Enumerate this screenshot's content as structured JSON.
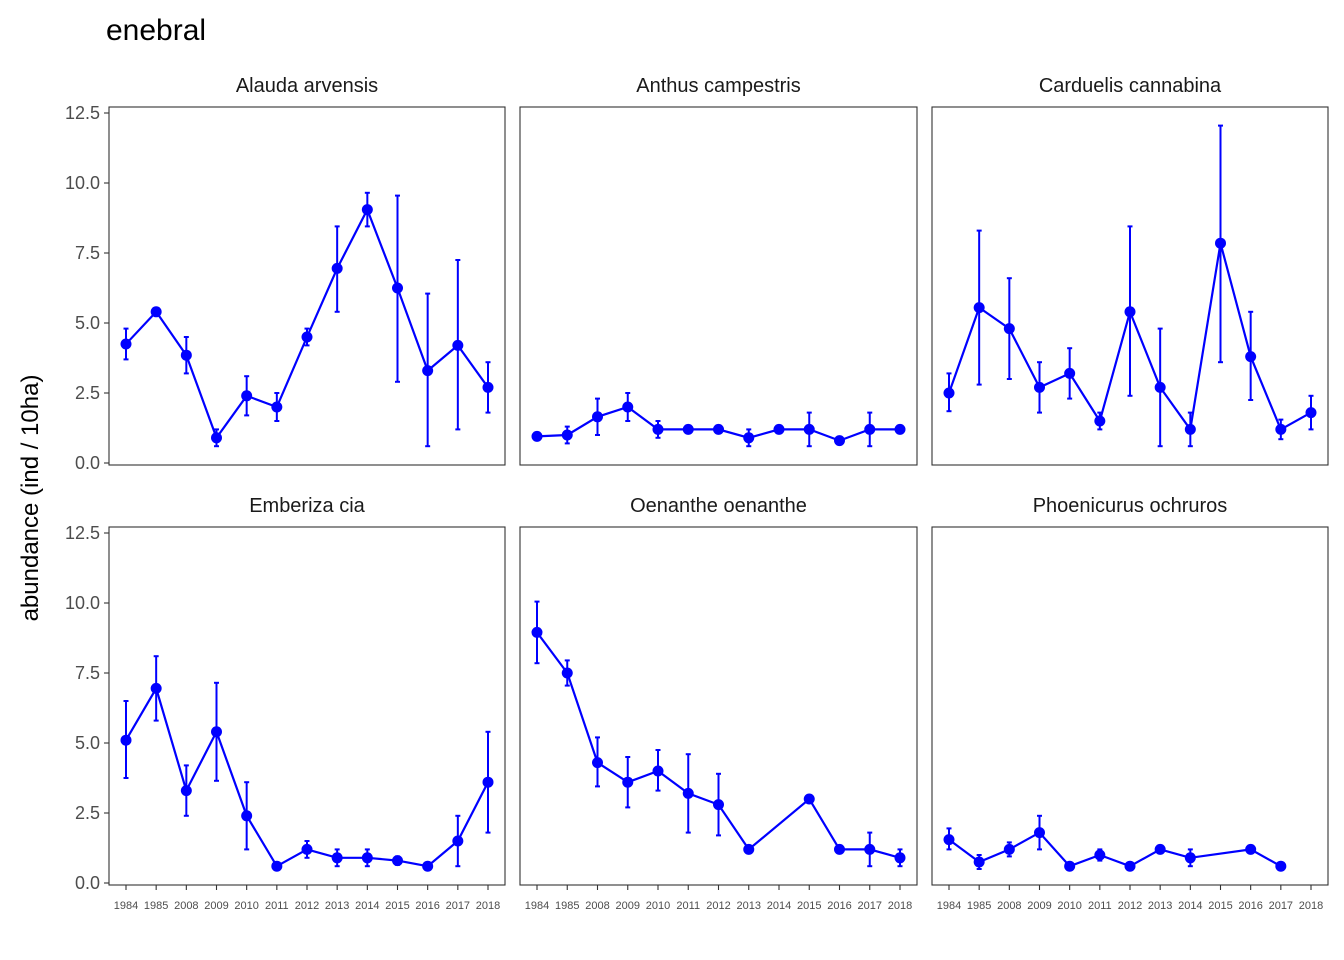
{
  "chart_data": {
    "type": "line",
    "title": "enebral",
    "ylabel": "abundance (ind / 10ha)",
    "xlabel": "",
    "ylim": [
      0,
      12.5
    ],
    "y_ticks": [
      "0.0",
      "2.5",
      "5.0",
      "7.5",
      "10.0",
      "12.5"
    ],
    "x_categories": [
      "1984",
      "1985",
      "2008",
      "2009",
      "2010",
      "2011",
      "2012",
      "2013",
      "2014",
      "2015",
      "2016",
      "2017",
      "2018"
    ],
    "color": "#0000ff",
    "grid": false,
    "panels": [
      {
        "name": "Alauda arvensis",
        "points": [
          {
            "x": "1984",
            "y": 4.25,
            "ymin": 3.7,
            "ymax": 4.8
          },
          {
            "x": "1985",
            "y": 5.4,
            "ymin": 5.3,
            "ymax": 5.5
          },
          {
            "x": "2008",
            "y": 3.85,
            "ymin": 3.2,
            "ymax": 4.5
          },
          {
            "x": "2009",
            "y": 0.9,
            "ymin": 0.6,
            "ymax": 1.2
          },
          {
            "x": "2010",
            "y": 2.4,
            "ymin": 1.7,
            "ymax": 3.1
          },
          {
            "x": "2011",
            "y": 2.0,
            "ymin": 1.5,
            "ymax": 2.5
          },
          {
            "x": "2012",
            "y": 4.5,
            "ymin": 4.2,
            "ymax": 4.8
          },
          {
            "x": "2013",
            "y": 6.95,
            "ymin": 5.4,
            "ymax": 8.45
          },
          {
            "x": "2014",
            "y": 9.05,
            "ymin": 8.45,
            "ymax": 9.65
          },
          {
            "x": "2015",
            "y": 6.25,
            "ymin": 2.9,
            "ymax": 9.55
          },
          {
            "x": "2016",
            "y": 3.3,
            "ymin": 0.6,
            "ymax": 6.05
          },
          {
            "x": "2017",
            "y": 4.2,
            "ymin": 1.2,
            "ymax": 7.25
          },
          {
            "x": "2018",
            "y": 2.7,
            "ymin": 1.8,
            "ymax": 3.6
          }
        ]
      },
      {
        "name": "Anthus campestris",
        "points": [
          {
            "x": "1984",
            "y": 0.95,
            "ymin": null,
            "ymax": null
          },
          {
            "x": "1985",
            "y": 1.0,
            "ymin": 0.7,
            "ymax": 1.3
          },
          {
            "x": "2008",
            "y": 1.65,
            "ymin": 1.0,
            "ymax": 2.3
          },
          {
            "x": "2009",
            "y": 2.0,
            "ymin": 1.5,
            "ymax": 2.5
          },
          {
            "x": "2010",
            "y": 1.2,
            "ymin": 0.9,
            "ymax": 1.5
          },
          {
            "x": "2011",
            "y": 1.2,
            "ymin": null,
            "ymax": null
          },
          {
            "x": "2012",
            "y": 1.2,
            "ymin": null,
            "ymax": null
          },
          {
            "x": "2013",
            "y": 0.9,
            "ymin": 0.6,
            "ymax": 1.2
          },
          {
            "x": "2014",
            "y": 1.2,
            "ymin": null,
            "ymax": null
          },
          {
            "x": "2015",
            "y": 1.2,
            "ymin": 0.6,
            "ymax": 1.8
          },
          {
            "x": "2016",
            "y": 0.8,
            "ymin": 0.7,
            "ymax": 0.9
          },
          {
            "x": "2017",
            "y": 1.2,
            "ymin": 0.6,
            "ymax": 1.8
          },
          {
            "x": "2018",
            "y": 1.2,
            "ymin": null,
            "ymax": null
          }
        ]
      },
      {
        "name": "Carduelis cannabina",
        "points": [
          {
            "x": "1984",
            "y": 2.5,
            "ymin": 1.85,
            "ymax": 3.2
          },
          {
            "x": "1985",
            "y": 5.55,
            "ymin": 2.8,
            "ymax": 8.3
          },
          {
            "x": "2008",
            "y": 4.8,
            "ymin": 3.0,
            "ymax": 6.6
          },
          {
            "x": "2009",
            "y": 2.7,
            "ymin": 1.8,
            "ymax": 3.6
          },
          {
            "x": "2010",
            "y": 3.2,
            "ymin": 2.3,
            "ymax": 4.1
          },
          {
            "x": "2011",
            "y": 1.5,
            "ymin": 1.2,
            "ymax": 1.8
          },
          {
            "x": "2012",
            "y": 5.4,
            "ymin": 2.4,
            "ymax": 8.45
          },
          {
            "x": "2013",
            "y": 2.7,
            "ymin": 0.6,
            "ymax": 4.8
          },
          {
            "x": "2014",
            "y": 1.2,
            "ymin": 0.6,
            "ymax": 1.8
          },
          {
            "x": "2015",
            "y": 7.85,
            "ymin": 3.6,
            "ymax": 12.05
          },
          {
            "x": "2016",
            "y": 3.8,
            "ymin": 2.25,
            "ymax": 5.4
          },
          {
            "x": "2017",
            "y": 1.2,
            "ymin": 0.85,
            "ymax": 1.55
          },
          {
            "x": "2018",
            "y": 1.8,
            "ymin": 1.2,
            "ymax": 2.4
          }
        ]
      },
      {
        "name": "Emberiza cia",
        "points": [
          {
            "x": "1984",
            "y": 5.1,
            "ymin": 3.75,
            "ymax": 6.5
          },
          {
            "x": "1985",
            "y": 6.95,
            "ymin": 5.8,
            "ymax": 8.1
          },
          {
            "x": "2008",
            "y": 3.3,
            "ymin": 2.4,
            "ymax": 4.2
          },
          {
            "x": "2009",
            "y": 5.4,
            "ymin": 3.65,
            "ymax": 7.15
          },
          {
            "x": "2010",
            "y": 2.4,
            "ymin": 1.2,
            "ymax": 3.6
          },
          {
            "x": "2011",
            "y": 0.6,
            "ymin": null,
            "ymax": null
          },
          {
            "x": "2012",
            "y": 1.2,
            "ymin": 0.9,
            "ymax": 1.5
          },
          {
            "x": "2013",
            "y": 0.9,
            "ymin": 0.6,
            "ymax": 1.2
          },
          {
            "x": "2014",
            "y": 0.9,
            "ymin": 0.6,
            "ymax": 1.2
          },
          {
            "x": "2015",
            "y": 0.8,
            "ymin": 0.65,
            "ymax": 0.95
          },
          {
            "x": "2016",
            "y": 0.6,
            "ymin": null,
            "ymax": null
          },
          {
            "x": "2017",
            "y": 1.5,
            "ymin": 0.6,
            "ymax": 2.4
          },
          {
            "x": "2018",
            "y": 3.6,
            "ymin": 1.8,
            "ymax": 5.4
          }
        ]
      },
      {
        "name": "Oenanthe oenanthe",
        "points": [
          {
            "x": "1984",
            "y": 8.95,
            "ymin": 7.85,
            "ymax": 10.05
          },
          {
            "x": "1985",
            "y": 7.5,
            "ymin": 7.05,
            "ymax": 7.95
          },
          {
            "x": "2008",
            "y": 4.3,
            "ymin": 3.45,
            "ymax": 5.2
          },
          {
            "x": "2009",
            "y": 3.6,
            "ymin": 2.7,
            "ymax": 4.5
          },
          {
            "x": "2010",
            "y": 4.0,
            "ymin": 3.3,
            "ymax": 4.75
          },
          {
            "x": "2011",
            "y": 3.2,
            "ymin": 1.8,
            "ymax": 4.6
          },
          {
            "x": "2012",
            "y": 2.8,
            "ymin": 1.7,
            "ymax": 3.9
          },
          {
            "x": "2013",
            "y": 1.2,
            "ymin": null,
            "ymax": null
          },
          {
            "x": "2015",
            "y": 3.0,
            "ymin": null,
            "ymax": null
          },
          {
            "x": "2016",
            "y": 1.2,
            "ymin": null,
            "ymax": null
          },
          {
            "x": "2017",
            "y": 1.2,
            "ymin": 0.6,
            "ymax": 1.8
          },
          {
            "x": "2018",
            "y": 0.9,
            "ymin": 0.6,
            "ymax": 1.2
          }
        ]
      },
      {
        "name": "Phoenicurus ochruros",
        "points": [
          {
            "x": "1984",
            "y": 1.55,
            "ymin": 1.2,
            "ymax": 1.95
          },
          {
            "x": "1985",
            "y": 0.75,
            "ymin": 0.5,
            "ymax": 1.0
          },
          {
            "x": "2008",
            "y": 1.2,
            "ymin": 0.95,
            "ymax": 1.45
          },
          {
            "x": "2009",
            "y": 1.8,
            "ymin": 1.2,
            "ymax": 2.4
          },
          {
            "x": "2010",
            "y": 0.6,
            "ymin": null,
            "ymax": null
          },
          {
            "x": "2011",
            "y": 1.0,
            "ymin": 0.8,
            "ymax": 1.2
          },
          {
            "x": "2012",
            "y": 0.6,
            "ymin": null,
            "ymax": null
          },
          {
            "x": "2013",
            "y": 1.2,
            "ymin": null,
            "ymax": null
          },
          {
            "x": "2014",
            "y": 0.9,
            "ymin": 0.6,
            "ymax": 1.2
          },
          {
            "x": "2016",
            "y": 1.2,
            "ymin": null,
            "ymax": null
          },
          {
            "x": "2017",
            "y": 0.6,
            "ymin": null,
            "ymax": null
          }
        ]
      }
    ]
  }
}
